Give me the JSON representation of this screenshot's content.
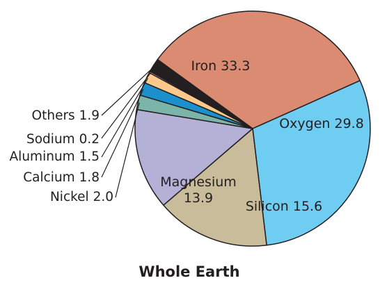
{
  "chart_data": {
    "type": "pie",
    "title": "Whole Earth",
    "slices": [
      {
        "name": "Iron",
        "value": 33.3,
        "label": "Iron 33.3",
        "color": "#db8b71"
      },
      {
        "name": "Oxygen",
        "value": 29.8,
        "label": "Oxygen 29.8",
        "color": "#6fcdf2"
      },
      {
        "name": "Silicon",
        "value": 15.6,
        "label": "Silicon 15.6",
        "color": "#c8bc9b"
      },
      {
        "name": "Magnesium",
        "value": 13.9,
        "label": [
          "Magnesium",
          "13.9"
        ],
        "color": "#b5b0d6"
      },
      {
        "name": "Nickel",
        "value": 2.0,
        "label": "Nickel 2.0",
        "color": "#7bb4a8"
      },
      {
        "name": "Calcium",
        "value": 1.8,
        "label": "Calcium 1.8",
        "color": "#1c8fcd"
      },
      {
        "name": "Aluminum",
        "value": 1.5,
        "label": "Aluminum 1.5",
        "color": "#fec98a"
      },
      {
        "name": "Sodium",
        "value": 0.2,
        "label": "Sodium 0.2",
        "color": "#f2b4c6"
      },
      {
        "name": "Others",
        "value": 1.9,
        "label": "Others 1.9",
        "color": "#231f20"
      }
    ]
  }
}
